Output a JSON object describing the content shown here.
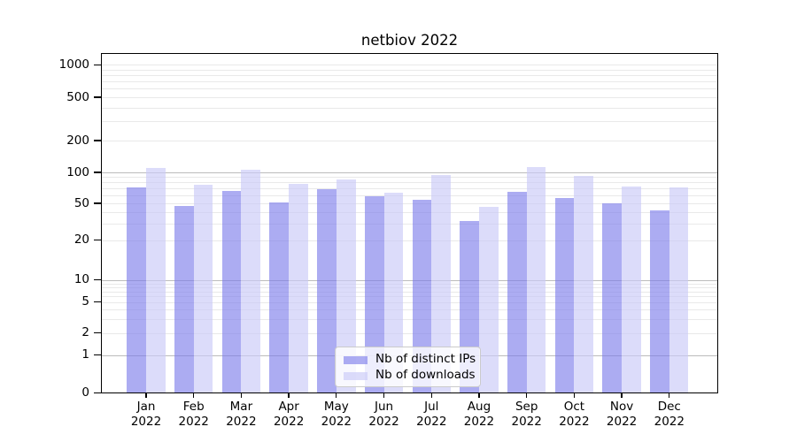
{
  "chart_data": {
    "type": "bar",
    "title": "netbiov 2022",
    "categories": [
      "Jan 2022",
      "Feb 2022",
      "Mar 2022",
      "Apr 2022",
      "May 2022",
      "Jun 2022",
      "Jul 2022",
      "Aug 2022",
      "Sep 2022",
      "Oct 2022",
      "Nov 2022",
      "Dec 2022"
    ],
    "x_tick_months": [
      "Jan",
      "Feb",
      "Mar",
      "Apr",
      "May",
      "Jun",
      "Jul",
      "Aug",
      "Sep",
      "Oct",
      "Nov",
      "Dec"
    ],
    "x_tick_year": "2022",
    "series": [
      {
        "name": "Nb of distinct IPs",
        "color": "#7c7ceb",
        "opacity": 0.63,
        "values": [
          72,
          47,
          66,
          51,
          69,
          59,
          54,
          32,
          65,
          56,
          50,
          42
        ]
      },
      {
        "name": "Nb of downloads",
        "color": "#cacaf7",
        "opacity": 0.65,
        "values": [
          110,
          76,
          105,
          77,
          86,
          64,
          95,
          46,
          113,
          93,
          73,
          71
        ]
      }
    ],
    "yticks": [
      0,
      1,
      2,
      5,
      10,
      20,
      50,
      100,
      200,
      500,
      1000
    ],
    "ytick_labels": [
      "0",
      "1",
      "2",
      "5",
      "10",
      "20",
      "50",
      "100",
      "200",
      "500",
      "1000"
    ],
    "yscale": "log-like with 0 baseline",
    "ylim": [
      0,
      1300
    ],
    "grid": {
      "major_values": [
        1,
        10,
        100
      ],
      "minor_values": [
        2,
        3,
        4,
        5,
        6,
        7,
        8,
        9,
        20,
        30,
        40,
        50,
        60,
        70,
        80,
        90,
        200,
        300,
        400,
        500,
        600,
        700,
        800,
        900,
        1000
      ],
      "major_color": "#bcbcbc",
      "minor_color": "#e9e9e9"
    },
    "legend": {
      "position": "inside-bottom-center"
    },
    "frame_color": "#000000",
    "background": "#ffffff",
    "text_color": "#000000"
  }
}
